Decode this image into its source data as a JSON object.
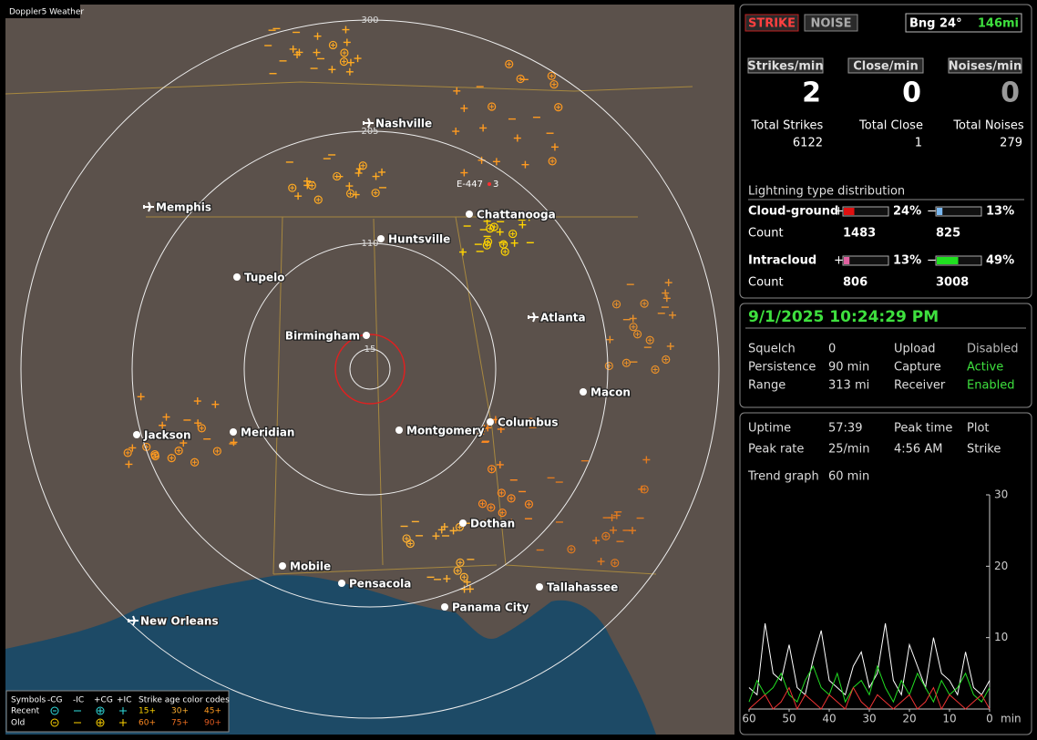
{
  "map": {
    "title": "Doppler5 Weather",
    "ring_labels": [
      "300",
      "205",
      "110",
      "15"
    ],
    "marker": [
      "E-447",
      "3"
    ],
    "cities": [
      "Nashville",
      "Memphis",
      "Chattanooga",
      "Huntsville",
      "Tupelo",
      "Atlanta",
      "Birmingham",
      "Macon",
      "Jackson",
      "Meridian",
      "Montgomery",
      "Columbus",
      "Dothan",
      "Mobile",
      "Pensacola",
      "Tallahassee",
      "Panama City",
      "New Orleans"
    ]
  },
  "legend": {
    "symbols": "Symbols",
    "headers": [
      "-CG",
      "-IC",
      "+CG",
      "+IC"
    ],
    "age_title": "Strike age color codes",
    "rows": [
      {
        "label": "Recent",
        "ages": [
          "15+",
          "30+",
          "45+"
        ]
      },
      {
        "label": "Old",
        "ages": [
          "60+",
          "75+",
          "90+"
        ]
      }
    ]
  },
  "status": {
    "strike": "STRIKE",
    "noise": "NOISE",
    "bearing": "Bng 24°",
    "distance": "146mi"
  },
  "rates": [
    {
      "label": "Strikes/min",
      "value": "2"
    },
    {
      "label": "Close/min",
      "value": "0"
    },
    {
      "label": "Noises/min",
      "value": "0"
    }
  ],
  "totals": [
    {
      "label": "Total Strikes",
      "value": "6122"
    },
    {
      "label": "Total Close",
      "value": "1"
    },
    {
      "label": "Total Noises",
      "value": "279"
    }
  ],
  "distribution": {
    "title": "Lightning type distribution",
    "count_label": "Count",
    "plus": "+",
    "minus": "−",
    "rows": [
      {
        "label": "Cloud-ground",
        "pos": {
          "value": 24,
          "label": "24%"
        },
        "neg": {
          "value": 13,
          "label": "13%"
        },
        "pos_count": "1483",
        "neg_count": "825"
      },
      {
        "label": "Intracloud",
        "pos": {
          "value": 13,
          "label": "13%"
        },
        "neg": {
          "value": 49,
          "label": "49%"
        },
        "pos_count": "806",
        "neg_count": "3008"
      }
    ]
  },
  "clock": "9/1/2025 10:24:29 PM",
  "settings": [
    [
      "Squelch",
      "0",
      "Upload",
      "Disabled"
    ],
    [
      "Persistence",
      "90 min",
      "Capture",
      "Active"
    ],
    [
      "Range",
      "313 mi",
      "Receiver",
      "Enabled"
    ]
  ],
  "stats": [
    [
      "Uptime",
      "57:39",
      "Peak time",
      "Plot"
    ],
    [
      "Peak rate",
      "25/min",
      "4:56 AM",
      "Strike"
    ]
  ],
  "trend": {
    "label": "Trend graph",
    "window": "60 min",
    "ylim": [
      0,
      30
    ],
    "yticks": [
      10,
      20,
      30
    ],
    "xlim": [
      60,
      0
    ],
    "xticks": [
      60,
      50,
      40,
      30,
      20,
      10,
      0
    ],
    "x_unit": "min",
    "x": [
      60,
      58,
      56,
      54,
      52,
      50,
      48,
      46,
      44,
      42,
      40,
      38,
      36,
      34,
      32,
      30,
      28,
      26,
      24,
      22,
      20,
      18,
      16,
      14,
      12,
      10,
      8,
      6,
      4,
      2,
      0
    ],
    "series": [
      {
        "color": "#ffffff",
        "values": [
          3,
          2,
          12,
          5,
          4,
          9,
          3,
          2,
          7,
          11,
          4,
          3,
          2,
          6,
          8,
          3,
          5,
          12,
          4,
          2,
          9,
          6,
          3,
          10,
          5,
          4,
          2,
          8,
          3,
          2,
          4
        ]
      },
      {
        "color": "#22dd22",
        "values": [
          1,
          4,
          2,
          3,
          5,
          2,
          1,
          4,
          6,
          3,
          2,
          5,
          1,
          3,
          4,
          2,
          6,
          3,
          1,
          4,
          2,
          5,
          3,
          1,
          4,
          2,
          3,
          5,
          2,
          1,
          3
        ]
      },
      {
        "color": "#ee3333",
        "values": [
          0,
          1,
          2,
          0,
          1,
          3,
          0,
          2,
          1,
          0,
          2,
          1,
          0,
          3,
          1,
          0,
          2,
          1,
          0,
          1,
          2,
          0,
          1,
          3,
          0,
          2,
          1,
          0,
          1,
          2,
          0
        ]
      }
    ]
  }
}
